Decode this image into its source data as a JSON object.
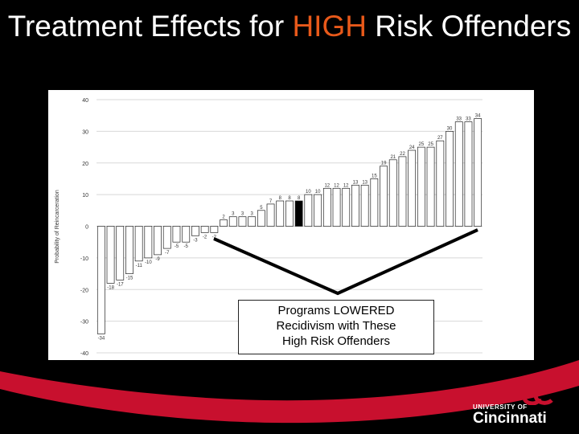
{
  "slide": {
    "title_pre": "Treatment Effects for ",
    "title_highlight": "HIGH",
    "title_post": " Risk Offenders",
    "callout_line1": "Programs LOWERED",
    "callout_line2": "Recidivism with These",
    "callout_line3": "High Risk Offenders",
    "logo_top": "UNIVERSITY OF",
    "logo_name": "Cincinnati"
  },
  "colors": {
    "highlight": "#e8591a",
    "brand_red": "#c8102e",
    "background": "#000000"
  },
  "chart_data": {
    "type": "bar",
    "ylabel": "Probability of Reincarceration",
    "ylim": [
      -40,
      40
    ],
    "yticks": [
      40,
      30,
      20,
      10,
      0,
      -10,
      -20,
      -30,
      -40
    ],
    "grid": true,
    "values": [
      -34,
      -18,
      -17,
      -15,
      -11,
      -10,
      -9,
      -7,
      -5,
      -5,
      -3,
      -2,
      -2,
      2,
      3,
      3,
      3,
      5,
      7,
      8,
      8,
      8,
      10,
      10,
      12,
      12,
      12,
      13,
      13,
      15,
      19,
      21,
      22,
      24,
      25,
      25,
      27,
      30,
      33,
      33,
      34
    ],
    "labels": [
      "-34",
      "-18",
      "-17",
      "-15",
      "-11",
      "-10",
      "-9",
      "-7",
      "-5",
      "-5",
      "-3",
      "-2",
      "-2",
      "2",
      "3",
      "3",
      "3",
      "5",
      "7",
      "8",
      "8",
      "8",
      "10",
      "10",
      "12",
      "12",
      "12",
      "13",
      "13",
      "15",
      "19",
      "21",
      "22",
      "24",
      "25",
      "25",
      "27",
      "30",
      "33",
      "33",
      "34"
    ],
    "highlight_index": 21
  }
}
